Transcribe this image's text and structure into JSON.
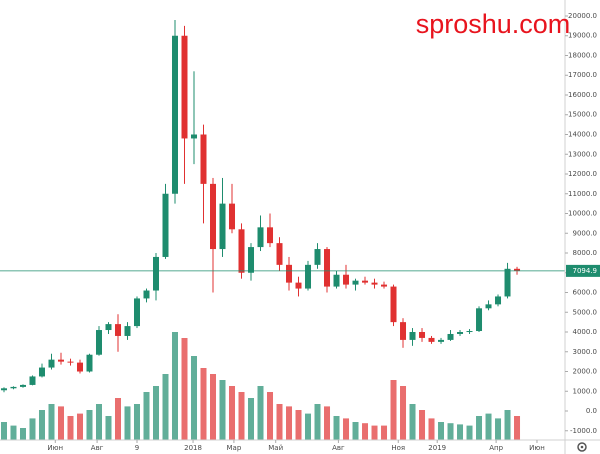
{
  "chart_data": {
    "type": "candlestick",
    "watermark": "sproshu.com",
    "open": [
      1050,
      1150,
      1220,
      1320,
      1750,
      2200,
      2600,
      2500,
      2450,
      2000,
      2850,
      4100,
      4400,
      3800,
      4300,
      5700,
      6100,
      7800,
      11000,
      19000,
      13800,
      14000,
      11500,
      8200,
      10500,
      9200,
      7000,
      8300,
      9300,
      8500,
      7400,
      6500,
      6200,
      7400,
      8200,
      6300,
      6900,
      6400,
      6600,
      6500,
      6400,
      6300,
      4500,
      3600,
      4000,
      3700,
      3500,
      3600,
      3900,
      4000,
      4050,
      5200,
      5400,
      5800,
      7200
    ],
    "high": [
      1200,
      1250,
      1350,
      1800,
      2400,
      2900,
      2950,
      2650,
      2600,
      2900,
      4300,
      4500,
      4900,
      4500,
      5800,
      6200,
      8000,
      11500,
      19800,
      19500,
      17200,
      14500,
      11800,
      11800,
      11500,
      9500,
      8500,
      9900,
      10000,
      8800,
      7800,
      6800,
      7600,
      8500,
      8300,
      7100,
      7400,
      6700,
      6800,
      6700,
      6550,
      6400,
      4700,
      4200,
      4200,
      3800,
      3700,
      4100,
      4100,
      4150,
      5300,
      5600,
      5900,
      7500,
      7300
    ],
    "low": [
      950,
      1100,
      1180,
      1300,
      1700,
      2100,
      2350,
      2300,
      1900,
      1950,
      2800,
      3900,
      3000,
      3600,
      4200,
      5500,
      5600,
      7700,
      10500,
      11500,
      12500,
      9500,
      6000,
      7800,
      9000,
      6700,
      6600,
      8100,
      8300,
      7100,
      6100,
      5800,
      6100,
      7200,
      6000,
      6200,
      6200,
      6100,
      6400,
      6200,
      6200,
      4300,
      3200,
      3300,
      3500,
      3400,
      3400,
      3550,
      3800,
      3900,
      4000,
      5100,
      5300,
      5700,
      6900
    ],
    "close": [
      1150,
      1220,
      1320,
      1750,
      2200,
      2600,
      2500,
      2450,
      2000,
      2850,
      4100,
      4400,
      3800,
      4300,
      5700,
      6100,
      7800,
      11000,
      19000,
      13800,
      14000,
      11500,
      8200,
      10500,
      9200,
      7000,
      8300,
      9300,
      8500,
      7400,
      6500,
      6200,
      7400,
      8200,
      6300,
      6900,
      6400,
      6600,
      6500,
      6400,
      6300,
      4500,
      3600,
      4000,
      3700,
      3500,
      3600,
      3900,
      4000,
      4050,
      5200,
      5400,
      5800,
      7200,
      7094.9
    ],
    "volume": [
      15,
      12,
      10,
      18,
      25,
      30,
      28,
      20,
      22,
      25,
      30,
      20,
      35,
      28,
      30,
      40,
      45,
      55,
      90,
      85,
      70,
      60,
      55,
      50,
      45,
      40,
      35,
      45,
      40,
      30,
      28,
      25,
      22,
      30,
      28,
      20,
      18,
      15,
      14,
      12,
      12,
      50,
      45,
      30,
      25,
      18,
      15,
      14,
      13,
      12,
      20,
      22,
      18,
      25,
      20
    ],
    "up_color": "#1e8c6e",
    "down_color": "#e03131",
    "last_price": 7094.9,
    "xlim": [
      -0.42,
      59.05
    ],
    "xticks": [
      {
        "value": 5.4,
        "label": "Июн"
      },
      {
        "value": 9.8,
        "label": "Авг"
      },
      {
        "value": 14,
        "label": "9"
      },
      {
        "value": 19.9,
        "label": "2018"
      },
      {
        "value": 24.2,
        "label": "Мар"
      },
      {
        "value": 28.6,
        "label": "Май"
      },
      {
        "value": 35.2,
        "label": "Авг"
      },
      {
        "value": 41.5,
        "label": "Ноя"
      },
      {
        "value": 45.6,
        "label": "2019"
      },
      {
        "value": 51.8,
        "label": "Апр"
      },
      {
        "value": 56.1,
        "label": "Июн"
      }
    ],
    "ylim": [
      -1468,
      20810
    ],
    "yticks": [
      {
        "value": -1000,
        "label": "-1000.0"
      },
      {
        "value": 0,
        "label": "0.0"
      },
      {
        "value": 1000,
        "label": "1000.0"
      },
      {
        "value": 2000,
        "label": "2000.0"
      },
      {
        "value": 3000,
        "label": "3000.0"
      },
      {
        "value": 4000,
        "label": "4000.0"
      },
      {
        "value": 5000,
        "label": "5000.0"
      },
      {
        "value": 6000,
        "label": "6000.0"
      },
      {
        "value": 7000,
        "label": "7000.0"
      },
      {
        "value": 8000,
        "label": "8000.0"
      },
      {
        "value": 9000,
        "label": "9000.0"
      },
      {
        "value": 10000,
        "label": "10000.0"
      },
      {
        "value": 11000,
        "label": "11000.0"
      },
      {
        "value": 12000,
        "label": "12000.0"
      },
      {
        "value": 13000,
        "label": "13000.0"
      },
      {
        "value": 14000,
        "label": "14000.0"
      },
      {
        "value": 15000,
        "label": "15000.0"
      },
      {
        "value": 16000,
        "label": "16000.0"
      },
      {
        "value": 17000,
        "label": "17000.0"
      },
      {
        "value": 18000,
        "label": "18000.0"
      },
      {
        "value": 19000,
        "label": "19000.0"
      },
      {
        "value": 20000,
        "label": "20000.0"
      }
    ],
    "vlim": [
      0,
      100
    ]
  }
}
